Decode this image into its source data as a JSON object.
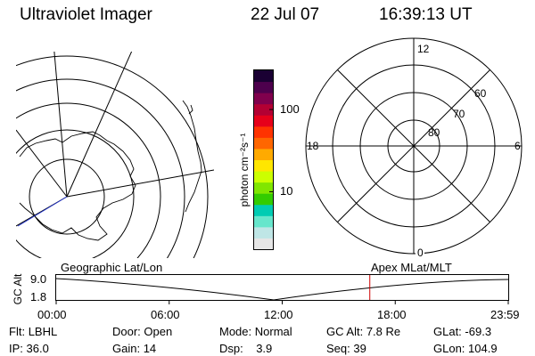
{
  "header": {
    "instrument": "Ultraviolet Imager",
    "date": "22 Jul 07",
    "time": "16:39:13 UT"
  },
  "colorbar": {
    "unit_label": "photon cm⁻²s⁻¹",
    "ticks": [
      "100",
      "10"
    ],
    "tick_values": [
      100,
      10
    ],
    "range": [
      2,
      300
    ],
    "scale": "log",
    "colors": [
      "#e6e6e6",
      "#bfe6e6",
      "#66e6cc",
      "#00ccb3",
      "#33cc00",
      "#80e600",
      "#ccff00",
      "#ffe600",
      "#ffaa00",
      "#ff6600",
      "#ff3300",
      "#e6001a",
      "#b30033",
      "#80004d",
      "#4d004d",
      "#1a0033"
    ]
  },
  "polar_plot": {
    "mlt_labels": {
      "top": "12",
      "right": "6",
      "bottom": "0",
      "left": "18"
    },
    "lat_labels": [
      "80",
      "70",
      "60"
    ]
  },
  "timeline": {
    "left_label": "Geographic Lat/Lon",
    "right_label": "Apex MLat/MLT",
    "axis_title": "GC Alt",
    "y_ticks": [
      "9.0",
      "1.8"
    ],
    "x_ticks": [
      "00:00",
      "06:00",
      "12:00",
      "18:00",
      "23:59"
    ],
    "current_time_hours": 16.65,
    "marker_color": "#cc0000"
  },
  "status": {
    "filter": {
      "label": "Flt:",
      "value": "LBHL"
    },
    "door": {
      "label": "Door:",
      "value": "Open"
    },
    "mode": {
      "label": "Mode:",
      "value": "Normal"
    },
    "gc_alt": {
      "label": "GC Alt:",
      "value": "7.8 Re"
    },
    "glat": {
      "label": "GLat:",
      "value": "-69.3"
    },
    "ip": {
      "label": "IP:",
      "value": "36.0"
    },
    "gain": {
      "label": "Gain:",
      "value": "14"
    },
    "dsp": {
      "label": "Dsp:",
      "value": "3.9"
    },
    "seq": {
      "label": "Seq:",
      "value": "39"
    },
    "glon": {
      "label": "GLon:",
      "value": "104.9"
    }
  }
}
